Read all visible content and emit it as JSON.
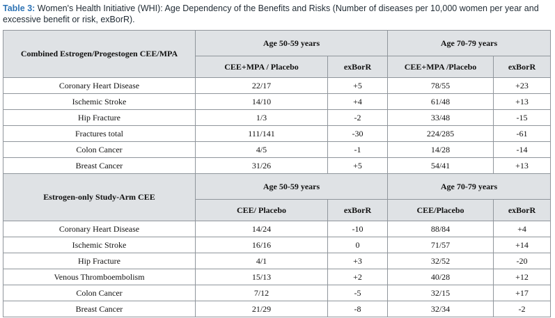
{
  "caption": {
    "lead": "Table 3:",
    "text": " Women's Health Initiative (WHI): Age Dependency of the Benefits and Risks (Number of diseases per 10,000 women per year and excessive benefit or risk, exBorR)."
  },
  "sections": [
    {
      "title": "Combined Estrogen/Progestogen CEE/MPA",
      "age_a": "Age 50-59 years",
      "age_b": "Age 70-79 years",
      "col_a1": "CEE+MPA / Placebo",
      "col_a2": "exBorR",
      "col_b1": "CEE+MPA /Placebo",
      "col_b2": "exBorR",
      "rows": [
        {
          "label": "Coronary Heart Disease",
          "a1": "22/17",
          "a2": "+5",
          "b1": "78/55",
          "b2": "+23"
        },
        {
          "label": "Ischemic Stroke",
          "a1": "14/10",
          "a2": "+4",
          "b1": "61/48",
          "b2": "+13"
        },
        {
          "label": "Hip Fracture",
          "a1": "1/3",
          "a2": "-2",
          "b1": "33/48",
          "b2": "-15"
        },
        {
          "label": "Fractures total",
          "a1": "111/141",
          "a2": "-30",
          "b1": "224/285",
          "b2": "-61"
        },
        {
          "label": "Colon Cancer",
          "a1": "4/5",
          "a2": "-1",
          "b1": "14/28",
          "b2": "-14"
        },
        {
          "label": "Breast Cancer",
          "a1": "31/26",
          "a2": "+5",
          "b1": "54/41",
          "b2": "+13"
        }
      ]
    },
    {
      "title": "Estrogen-only Study-Arm CEE",
      "age_a": "Age 50-59 years",
      "age_b": "Age 70-79 years",
      "col_a1": "CEE/ Placebo",
      "col_a2": "exBorR",
      "col_b1": "CEE/Placebo",
      "col_b2": "exBorR",
      "rows": [
        {
          "label": "Coronary Heart Disease",
          "a1": "14/24",
          "a2": "-10",
          "b1": "88/84",
          "b2": "+4"
        },
        {
          "label": "Ischemic Stroke",
          "a1": "16/16",
          "a2": "0",
          "b1": "71/57",
          "b2": "+14"
        },
        {
          "label": "Hip Fracture",
          "a1": "4/1",
          "a2": "+3",
          "b1": "32/52",
          "b2": "-20"
        },
        {
          "label": "Venous Thromboembolism",
          "a1": "15/13",
          "a2": "+2",
          "b1": "40/28",
          "b2": "+12"
        },
        {
          "label": "Colon Cancer",
          "a1": "7/12",
          "a2": "-5",
          "b1": "32/15",
          "b2": "+17"
        },
        {
          "label": "Breast Cancer",
          "a1": "21/29",
          "a2": "-8",
          "b1": "32/34",
          "b2": "-2"
        }
      ]
    }
  ]
}
